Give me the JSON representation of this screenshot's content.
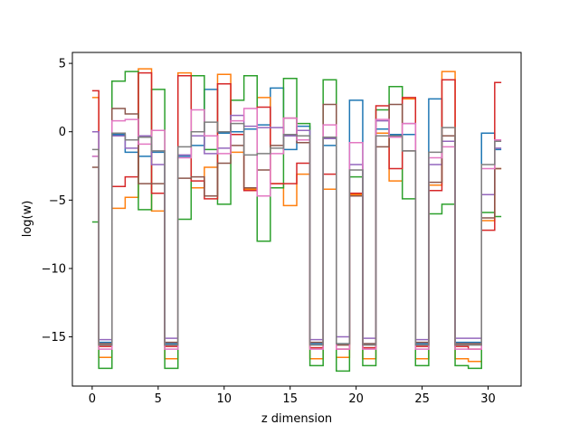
{
  "chart_data": {
    "type": "line",
    "drawstyle": "steps-mid",
    "xlabel": "z dimension",
    "ylabel": "log(w)",
    "xlim": [
      -1.5,
      32.5
    ],
    "ylim": [
      -18.6,
      5.8
    ],
    "xticks": [
      0,
      5,
      10,
      15,
      20,
      25,
      30
    ],
    "yticks": [
      5,
      0,
      -5,
      -10,
      -15
    ],
    "grid": false,
    "x": [
      0,
      1,
      2,
      3,
      4,
      5,
      6,
      7,
      8,
      9,
      10,
      11,
      12,
      13,
      14,
      15,
      16,
      17,
      18,
      19,
      20,
      21,
      22,
      23,
      24,
      25,
      26,
      27,
      28,
      29,
      30,
      31
    ],
    "series": [
      {
        "color": "#1f77b4",
        "values": [
          -1.8,
          -15.4,
          -0.2,
          -1.5,
          -1.8,
          -1.5,
          -15.5,
          -1.8,
          -1.0,
          3.1,
          -0.1,
          0.0,
          0.2,
          0.5,
          3.2,
          -1.3,
          0.4,
          -15.5,
          -1.0,
          -15.5,
          2.3,
          -15.5,
          0.2,
          -0.2,
          -0.2,
          -15.5,
          2.4,
          -0.7,
          -15.4,
          -15.4,
          -0.1,
          -1.3
        ]
      },
      {
        "color": "#ff7f0e",
        "values": [
          2.5,
          -16.5,
          -5.6,
          -4.8,
          4.6,
          -5.8,
          -16.6,
          4.3,
          -4.1,
          -2.6,
          4.2,
          -1.5,
          -4.2,
          2.5,
          -3.8,
          -5.4,
          -3.1,
          -16.6,
          -4.2,
          -16.5,
          -4.6,
          -16.6,
          -0.1,
          -3.6,
          2.4,
          -16.6,
          -3.9,
          4.4,
          -16.6,
          -16.8,
          -6.5,
          -2.7
        ]
      },
      {
        "color": "#2ca02c",
        "values": [
          -6.6,
          -17.3,
          3.7,
          4.4,
          -5.7,
          3.1,
          -17.3,
          -6.4,
          4.1,
          -1.3,
          -5.3,
          2.3,
          4.1,
          -8.0,
          -4.1,
          3.9,
          0.6,
          -17.1,
          3.8,
          -17.5,
          -3.3,
          -17.1,
          1.6,
          3.3,
          -4.9,
          -17.1,
          -6.0,
          -5.3,
          -17.1,
          -17.3,
          -5.9,
          -6.2
        ]
      },
      {
        "color": "#d62728",
        "values": [
          3.0,
          -15.7,
          -4.0,
          -3.3,
          4.3,
          -4.5,
          -15.7,
          4.1,
          -3.6,
          -4.9,
          3.5,
          -0.2,
          -4.3,
          1.8,
          -3.8,
          -3.8,
          -2.3,
          -15.8,
          -3.1,
          -15.9,
          -4.5,
          -15.8,
          1.9,
          -2.7,
          2.5,
          -15.7,
          -4.3,
          3.8,
          -15.7,
          -15.9,
          -7.2,
          3.6
        ]
      },
      {
        "color": "#9467bd",
        "values": [
          0.0,
          -15.2,
          -0.3,
          -1.2,
          -0.3,
          -2.4,
          -15.1,
          -1.7,
          -0.3,
          -1.6,
          -1.2,
          1.2,
          0.4,
          0.3,
          0.3,
          -0.3,
          0.1,
          -15.2,
          -0.5,
          -15.0,
          -2.4,
          -15.1,
          0.8,
          -0.4,
          0.6,
          -15.2,
          -2.4,
          -0.7,
          -15.1,
          -15.1,
          -4.6,
          -1.2
        ]
      },
      {
        "color": "#8c564b",
        "values": [
          -2.6,
          -15.5,
          1.7,
          1.3,
          -3.8,
          -3.8,
          -15.4,
          -3.4,
          -3.3,
          -4.7,
          -2.3,
          -1.0,
          -4.1,
          -2.8,
          -1.0,
          1.0,
          -0.8,
          -15.4,
          2.0,
          -15.6,
          -4.7,
          -15.5,
          -1.1,
          2.0,
          -1.4,
          -15.4,
          -3.7,
          -0.3,
          -15.5,
          -15.5,
          -6.3,
          -2.7
        ]
      },
      {
        "color": "#e377c2",
        "values": [
          -1.8,
          -15.9,
          0.8,
          0.9,
          -0.9,
          0.1,
          -15.9,
          -1.9,
          1.6,
          -0.3,
          -1.6,
          0.8,
          1.7,
          -4.7,
          -1.6,
          1.0,
          -0.6,
          -15.9,
          0.5,
          -15.9,
          -0.8,
          -15.9,
          0.9,
          -0.4,
          0.6,
          -15.9,
          -1.9,
          -1.1,
          -15.9,
          -15.9,
          -2.7,
          -0.6
        ]
      },
      {
        "color": "#7f7f7f",
        "values": [
          -1.3,
          -15.6,
          -0.1,
          -0.6,
          -0.4,
          -1.4,
          -15.6,
          -1.1,
          0.0,
          0.7,
          0.0,
          0.6,
          -1.7,
          -1.6,
          -1.2,
          -0.2,
          -0.3,
          -15.6,
          -0.4,
          -15.5,
          -2.8,
          -15.6,
          -0.3,
          -0.3,
          -1.4,
          -15.6,
          -1.5,
          0.3,
          -15.6,
          -15.6,
          -2.4,
          -0.7
        ]
      }
    ]
  }
}
